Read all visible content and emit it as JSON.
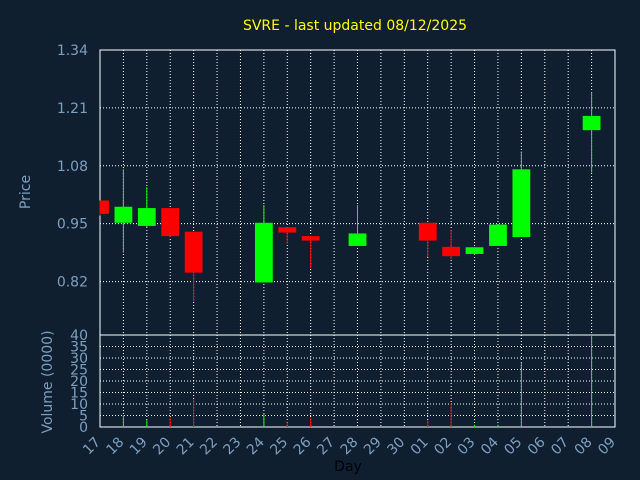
{
  "chart_data": {
    "type": "candlestick",
    "title": "SVRE - last updated 08/12/2025",
    "xlabel": "Day",
    "price_panel": {
      "ylabel": "Price",
      "ylim": [
        0.7,
        1.34
      ],
      "yticks": [
        "0.82",
        "0.95",
        "1.08",
        "1.21",
        "1.34"
      ],
      "ytick_values": [
        0.82,
        0.95,
        1.08,
        1.21,
        1.34
      ]
    },
    "volume_panel": {
      "ylabel": "Volume (0000)",
      "ylim": [
        0,
        40
      ],
      "yticks": [
        "0",
        "5",
        "10",
        "15",
        "20",
        "25",
        "30",
        "35",
        "40"
      ],
      "ytick_values": [
        0,
        5,
        10,
        15,
        20,
        25,
        30,
        35,
        40
      ]
    },
    "x_ticks": [
      "17",
      "18",
      "19",
      "20",
      "21",
      "22",
      "23",
      "24",
      "25",
      "26",
      "27",
      "28",
      "29",
      "30",
      "01",
      "02",
      "03",
      "04",
      "05",
      "06",
      "07",
      "08",
      "09"
    ],
    "candles": [
      {
        "day": "17",
        "open": 1.002,
        "close": 0.972,
        "high": 1.002,
        "low": 0.968,
        "volume": 0
      },
      {
        "day": "18",
        "open": 0.952,
        "close": 0.988,
        "high": 1.072,
        "low": 0.885,
        "volume": 5
      },
      {
        "day": "19",
        "open": 0.945,
        "close": 0.985,
        "high": 1.032,
        "low": 0.942,
        "volume": 3
      },
      {
        "day": "20",
        "open": 0.985,
        "close": 0.922,
        "high": 0.985,
        "low": 0.92,
        "volume": 4
      },
      {
        "day": "21",
        "open": 0.932,
        "close": 0.84,
        "high": 0.932,
        "low": 0.775,
        "volume": 12
      },
      {
        "day": "24",
        "open": 0.818,
        "close": 0.952,
        "high": 0.992,
        "low": 0.818,
        "volume": 6
      },
      {
        "day": "25",
        "open": 0.942,
        "close": 0.93,
        "high": 0.942,
        "low": 0.905,
        "volume": 2
      },
      {
        "day": "26",
        "open": 0.922,
        "close": 0.912,
        "high": 0.922,
        "low": 0.85,
        "volume": 4
      },
      {
        "day": "28",
        "open": 0.9,
        "close": 0.928,
        "high": 0.992,
        "low": 0.9,
        "volume": 0
      },
      {
        "day": "01",
        "open": 0.952,
        "close": 0.912,
        "high": 0.952,
        "low": 0.875,
        "volume": 3
      },
      {
        "day": "02",
        "open": 0.898,
        "close": 0.877,
        "high": 0.935,
        "low": 0.87,
        "volume": 10
      },
      {
        "day": "03",
        "open": 0.882,
        "close": 0.897,
        "high": 0.897,
        "low": 0.88,
        "volume": 1
      },
      {
        "day": "04",
        "open": 0.9,
        "close": 0.948,
        "high": 0.948,
        "low": 0.9,
        "volume": 1
      },
      {
        "day": "05",
        "open": 0.92,
        "close": 1.072,
        "high": 1.112,
        "low": 0.92,
        "volume": 28
      },
      {
        "day": "08",
        "open": 1.16,
        "close": 1.192,
        "high": 1.245,
        "low": 1.065,
        "volume": 40
      }
    ],
    "colors": {
      "background": "#0f1f30",
      "up": "#00ff00",
      "down": "#ff0000",
      "grid": "#ffffff",
      "title": "#ffff00",
      "axis_text": "#7f9fbf",
      "xlabel": "#000000"
    },
    "grid": true
  }
}
